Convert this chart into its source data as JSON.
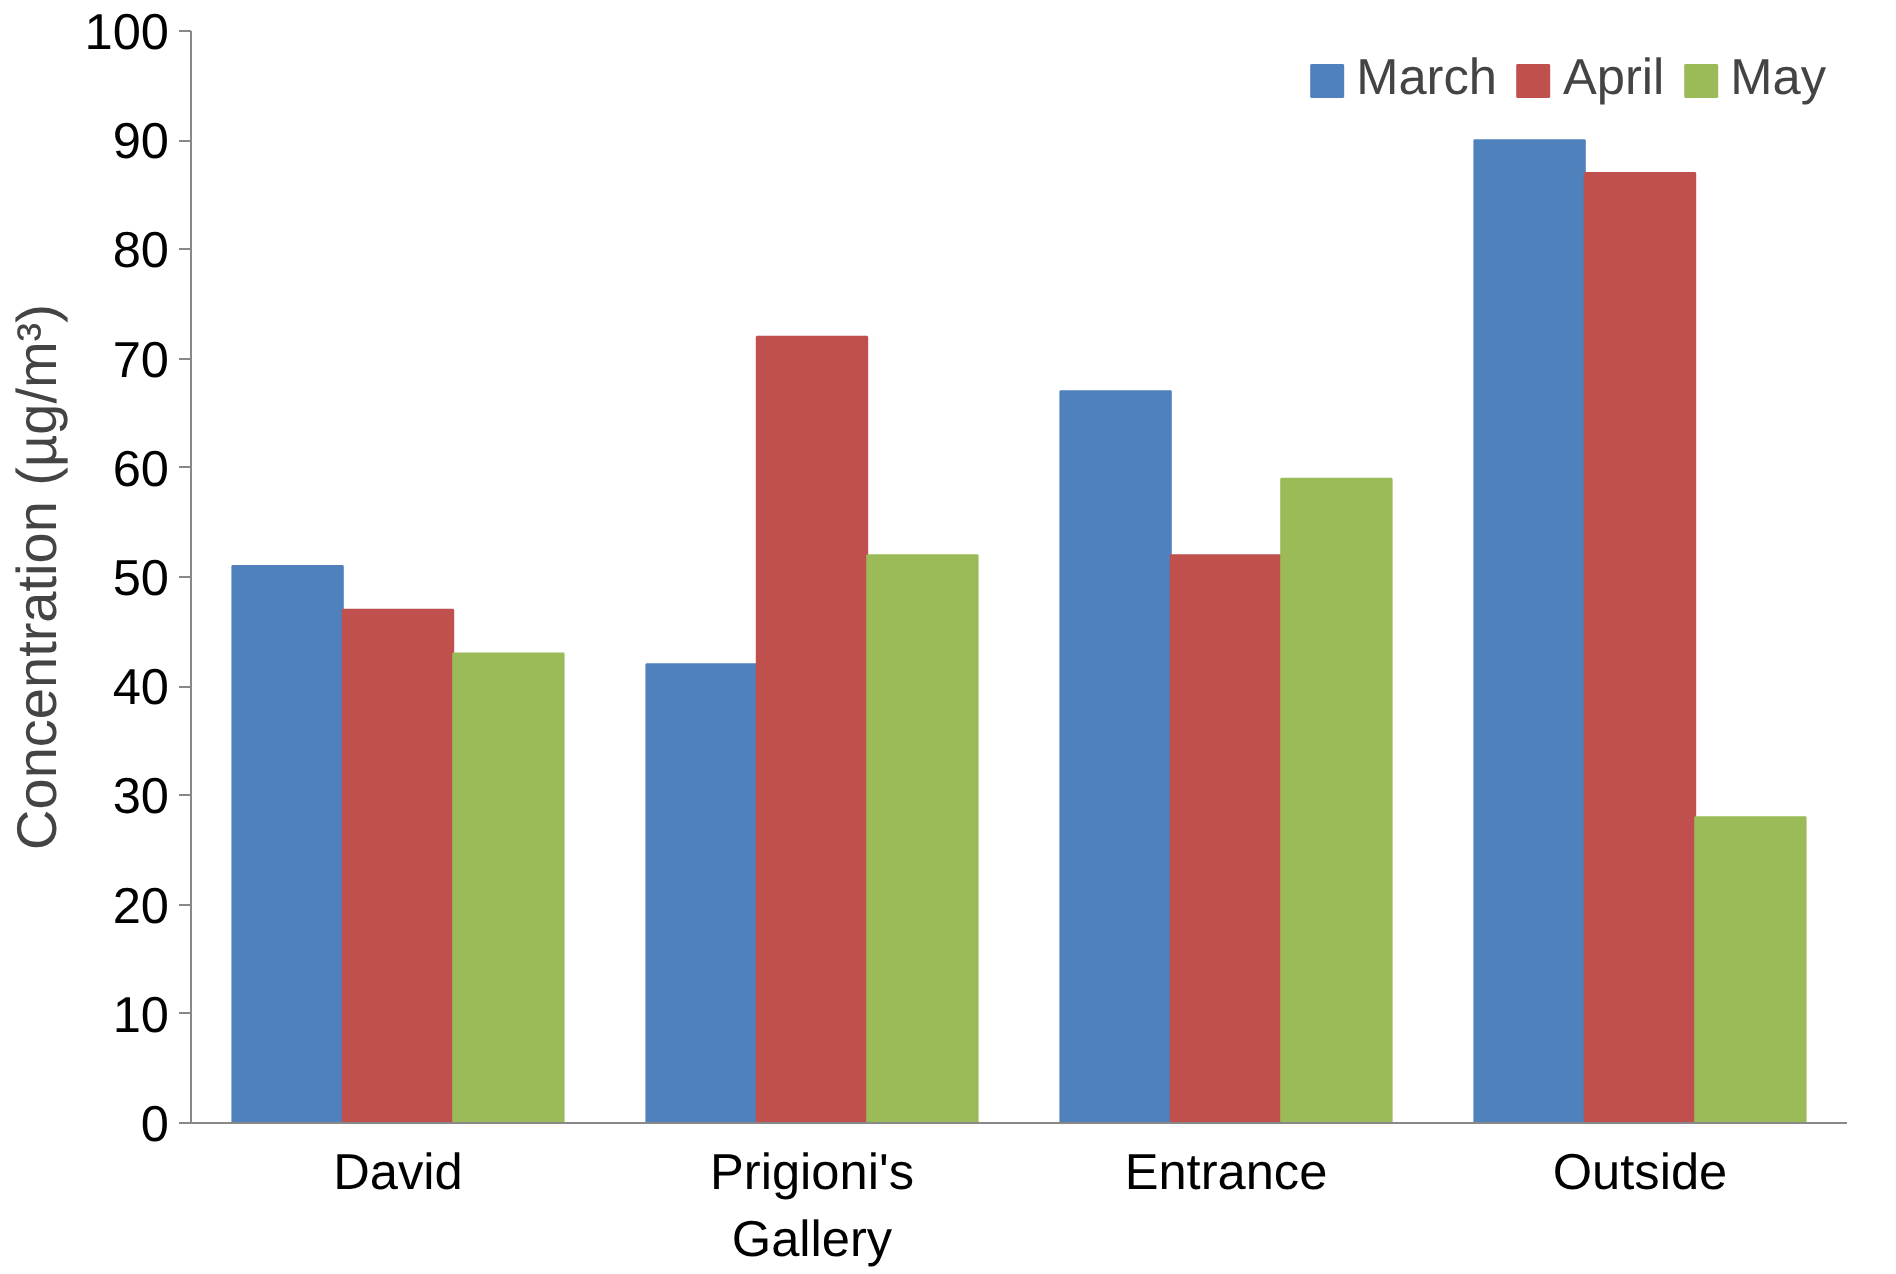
{
  "chart_data": {
    "type": "bar",
    "ylabel": "Concentration (µg/m³)",
    "categories": [
      "David",
      "Prigioni's Gallery",
      "Entrance",
      "Outside"
    ],
    "series": [
      {
        "name": "March",
        "color": "#4f81bd",
        "values": [
          51,
          42,
          67,
          90
        ]
      },
      {
        "name": "April",
        "color": "#c0504d",
        "values": [
          47,
          72,
          52,
          87
        ]
      },
      {
        "name": "May",
        "color": "#9bbb59",
        "values": [
          43,
          52,
          59,
          28
        ]
      }
    ],
    "ylim": [
      0,
      100
    ],
    "yticks": [
      0,
      10,
      20,
      30,
      40,
      50,
      60,
      70,
      80,
      90,
      100
    ],
    "grid": false,
    "legend": "top right"
  }
}
